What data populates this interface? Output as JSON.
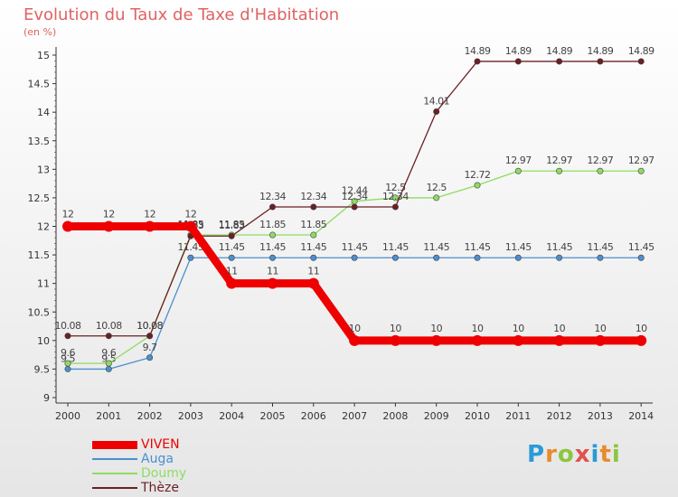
{
  "header": {
    "title": "Evolution du Taux de Taxe d'Habitation",
    "subtitle": "(en %)"
  },
  "logo": {
    "text": "Proxiti",
    "letters": [
      "P",
      "r",
      "o",
      "x",
      "i",
      "t",
      "i"
    ],
    "colors": [
      "#2a9bd6",
      "#e88b2c",
      "#8cc63f",
      "#e34f4f",
      "#2a9bd6",
      "#e88b2c",
      "#8cc63f"
    ]
  },
  "chart_data": {
    "type": "line",
    "x": [
      "2000",
      "2001",
      "2002",
      "2003",
      "2004",
      "2005",
      "2006",
      "2007",
      "2008",
      "2009",
      "2010",
      "2011",
      "2012",
      "2013",
      "2014"
    ],
    "ylim": [
      9,
      15
    ],
    "yticks": [
      "9",
      "9.5",
      "10",
      "10.5",
      "11",
      "11.5",
      "12",
      "12.5",
      "13",
      "13.5",
      "14",
      "14.5",
      "15"
    ],
    "grid": false,
    "legend_position": "bottom-left",
    "series": [
      {
        "name": "VIVEN",
        "color": "#ee0000",
        "values": [
          12,
          12,
          12,
          12,
          11,
          11,
          11,
          10,
          10,
          10,
          10,
          10,
          10,
          10,
          10
        ],
        "labels": [
          "12",
          "12",
          "12",
          "12",
          "11",
          "11",
          "11",
          "10",
          "10",
          "10",
          "10",
          "10",
          "10",
          "10",
          "10"
        ]
      },
      {
        "name": "Auga",
        "color": "#4b8fd0",
        "values": [
          9.5,
          9.5,
          9.7,
          11.45,
          11.45,
          11.45,
          11.45,
          11.45,
          11.45,
          11.45,
          11.45,
          11.45,
          11.45,
          11.45,
          11.45
        ],
        "labels": [
          "9.5",
          "9.5",
          "9.7",
          "11.45",
          "11.45",
          "11.45",
          "11.45",
          "11.45",
          "11.45",
          "11.45",
          "11.45",
          "11.45",
          "11.45",
          "11.45",
          "11.45"
        ]
      },
      {
        "name": "Doumy",
        "color": "#8edc62",
        "values": [
          9.6,
          9.6,
          10.08,
          11.85,
          11.85,
          11.85,
          11.85,
          12.44,
          12.5,
          12.5,
          12.72,
          12.97,
          12.97,
          12.97,
          12.97
        ],
        "labels": [
          "9.6",
          "9.6",
          "10.08",
          "11.85",
          "11.85",
          "11.85",
          "11.85",
          "12.44",
          "12.5",
          "12.5",
          "12.72",
          "12.97",
          "12.97",
          "12.97",
          "12.97"
        ]
      },
      {
        "name": "Thèze",
        "color": "#6b1f24",
        "values": [
          10.08,
          10.08,
          10.08,
          11.83,
          11.83,
          12.34,
          12.34,
          12.34,
          12.34,
          14.01,
          14.89,
          14.89,
          14.89,
          14.89,
          14.89
        ],
        "labels": [
          "10.08",
          "10.08",
          "10.08",
          "11.83",
          "11.83",
          "12.34",
          "12.34",
          "12.34",
          "12.34",
          "14.01",
          "14.89",
          "14.89",
          "14.89",
          "14.89",
          "14.89"
        ]
      }
    ]
  }
}
